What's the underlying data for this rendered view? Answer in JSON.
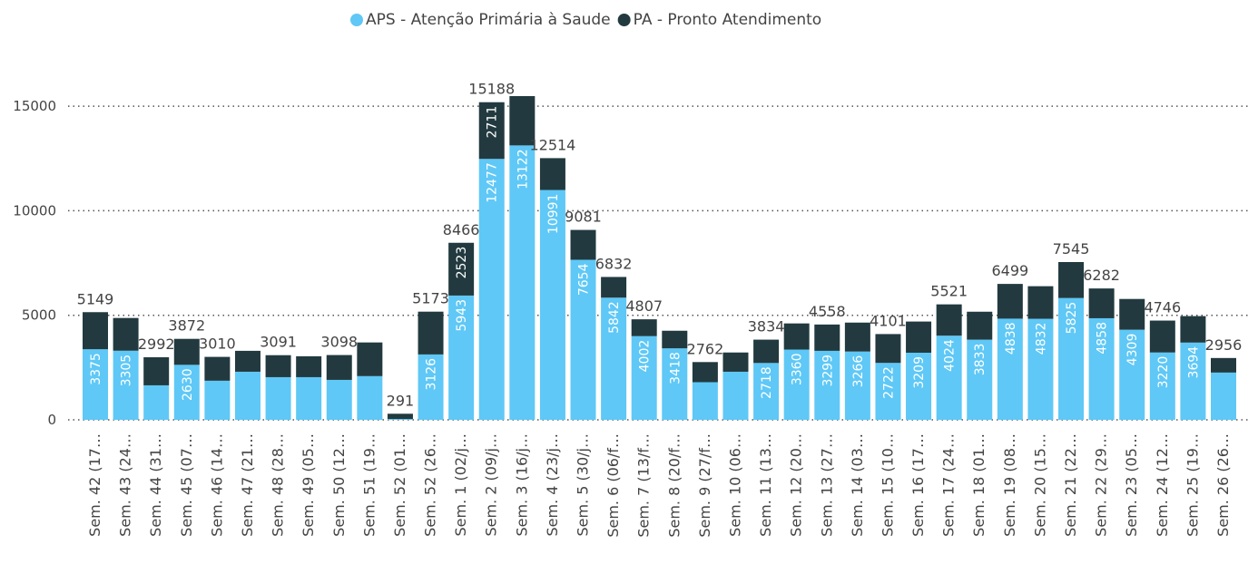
{
  "chart_data": {
    "type": "stacked_bar",
    "categories": [
      "Sem. 42 (17…",
      "Sem. 43 (24…",
      "Sem. 44 (31…",
      "Sem. 45 (07…",
      "Sem. 46 (14…",
      "Sem. 47 (21…",
      "Sem. 48 (28…",
      "Sem. 49 (05…",
      "Sem. 50 (12…",
      "Sem. 51 (19…",
      "Sem. 52 (01…",
      "Sem. 52 (26…",
      "Sem. 1 (02/j…",
      "Sem. 2 (09/j…",
      "Sem. 3 (16/j…",
      "Sem. 4 (23/j…",
      "Sem. 5 (30/j…",
      "Sem. 6 (06/f…",
      "Sem. 7 (13/f…",
      "Sem. 8 (20/f…",
      "Sem. 9 (27/f…",
      "Sem. 10 (06…",
      "Sem. 11 (13…",
      "Sem. 12 (20…",
      "Sem. 13 (27…",
      "Sem. 14 (03…",
      "Sem. 15 (10…",
      "Sem. 16 (17…",
      "Sem. 17 (24…",
      "Sem. 18 (01…",
      "Sem. 19 (08…",
      "Sem. 20 (15…",
      "Sem. 21 (22…",
      "Sem. 22 (29…",
      "Sem. 23 (05…",
      "Sem. 24 (12…",
      "Sem. 25 (19…",
      "Sem. 26 (26…"
    ],
    "series": [
      {
        "name": "APS - Atenção Primária à Saude",
        "color": "#5fc8f6",
        "values": [
          3375,
          3305,
          1650,
          2630,
          1870,
          2300,
          2040,
          2040,
          1910,
          2090,
          40,
          3126,
          5943,
          12477,
          13122,
          10991,
          7654,
          5842,
          4002,
          3418,
          1800,
          2300,
          2718,
          3360,
          3299,
          3266,
          2722,
          3209,
          4024,
          3833,
          4838,
          4832,
          5825,
          4858,
          4309,
          3220,
          3694,
          2260
        ],
        "labeled": [
          true,
          true,
          false,
          true,
          false,
          false,
          false,
          false,
          false,
          false,
          false,
          true,
          true,
          true,
          true,
          true,
          true,
          true,
          true,
          true,
          false,
          false,
          true,
          true,
          true,
          true,
          true,
          true,
          true,
          true,
          true,
          true,
          true,
          true,
          true,
          true,
          true,
          false
        ]
      },
      {
        "name": "PA - Pronto Atendimento",
        "color": "#223a3f",
        "values": [
          1774,
          1565,
          1342,
          1242,
          1140,
          1000,
          1051,
          1000,
          1188,
          1610,
          251,
          2047,
          2523,
          2711,
          2358,
          1523,
          1427,
          990,
          805,
          842,
          962,
          920,
          1116,
          1250,
          1259,
          1384,
          1379,
          1491,
          1497,
          1337,
          1661,
          1558,
          1720,
          1424,
          1471,
          1526,
          1266,
          696
        ],
        "labeled": [
          false,
          false,
          false,
          false,
          false,
          false,
          false,
          false,
          false,
          false,
          false,
          false,
          true,
          true,
          false,
          false,
          false,
          false,
          false,
          false,
          false,
          false,
          false,
          false,
          false,
          false,
          false,
          false,
          false,
          false,
          false,
          false,
          false,
          false,
          false,
          false,
          false,
          false
        ]
      }
    ],
    "totals": [
      5149,
      null,
      2992,
      3872,
      3010,
      null,
      3091,
      null,
      3098,
      null,
      291,
      5173,
      8466,
      15188,
      null,
      12514,
      9081,
      6832,
      4807,
      null,
      2762,
      null,
      3834,
      null,
      4558,
      null,
      4101,
      null,
      5521,
      null,
      6499,
      null,
      7545,
      6282,
      null,
      4746,
      null,
      2956
    ],
    "ylim": [
      0,
      16000
    ],
    "yticks": [
      0,
      5000,
      10000,
      15000
    ],
    "grid": true,
    "legend": "top"
  }
}
